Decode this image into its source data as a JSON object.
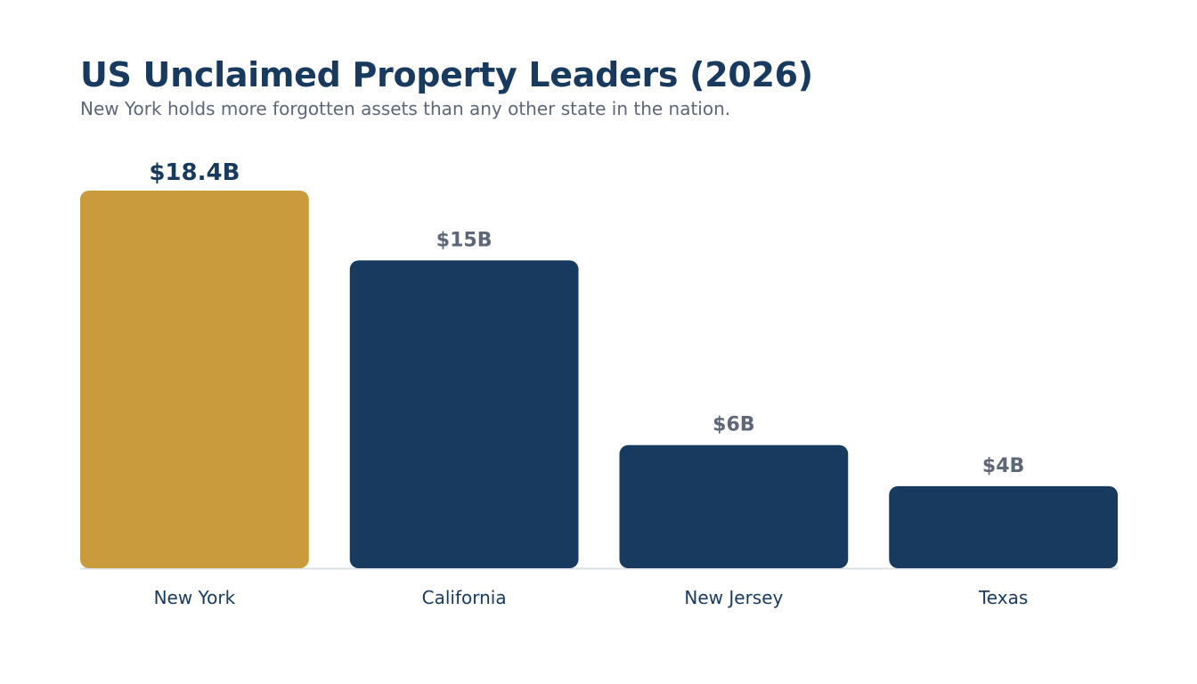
{
  "title": "US Unclaimed Property Leaders (2026)",
  "subtitle": "New York holds more forgotten assets than any other state in the nation.",
  "colors": {
    "highlight": "#c99b3c",
    "bar": "#183a5f",
    "highlight_label": "#183a5f",
    "label": "#5c6878",
    "category": "#183a5f",
    "baseline": "#dde1e6"
  },
  "chart_data": {
    "type": "bar",
    "categories": [
      "New York",
      "California",
      "New Jersey",
      "Texas"
    ],
    "values": [
      18.4,
      15,
      6,
      4
    ],
    "value_labels": [
      "$18.4B",
      "$15B",
      "$6B",
      "$4B"
    ],
    "highlight_index": 0,
    "ylim": [
      0,
      18.4
    ],
    "grid": false,
    "legend": "none",
    "xlabel": "",
    "ylabel": ""
  }
}
